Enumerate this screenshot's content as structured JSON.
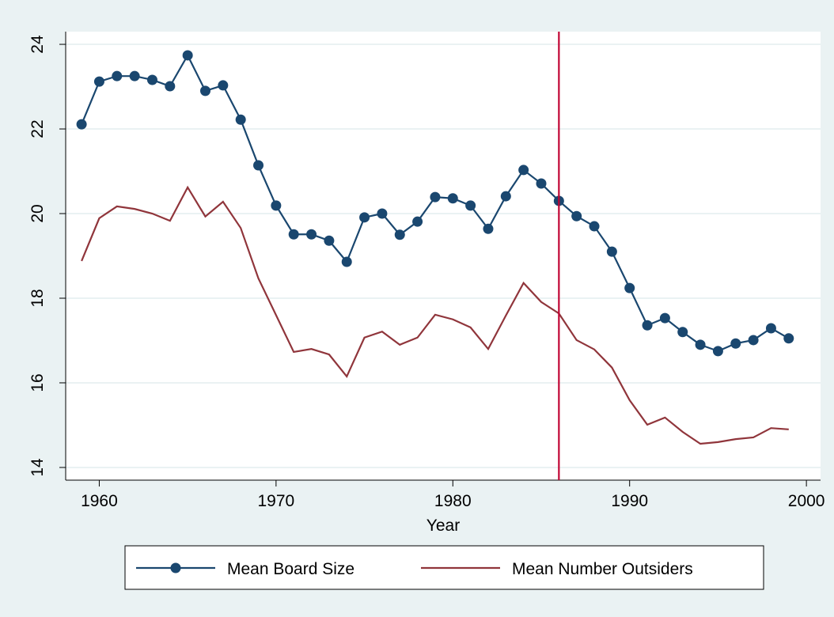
{
  "chart_data": {
    "type": "line",
    "x_label": "Year",
    "x": [
      1959,
      1960,
      1961,
      1962,
      1963,
      1964,
      1965,
      1966,
      1967,
      1968,
      1969,
      1970,
      1971,
      1972,
      1973,
      1974,
      1975,
      1976,
      1977,
      1978,
      1979,
      1980,
      1981,
      1982,
      1983,
      1984,
      1985,
      1986,
      1987,
      1988,
      1989,
      1990,
      1991,
      1992,
      1993,
      1994,
      1995,
      1996,
      1997,
      1998,
      1999
    ],
    "series": [
      {
        "name": "Mean Board Size",
        "color": "#1a476f",
        "marker": "circle",
        "values": [
          22.11,
          23.12,
          23.25,
          23.25,
          23.16,
          23.01,
          23.74,
          22.9,
          23.03,
          22.22,
          21.14,
          20.19,
          19.51,
          19.51,
          19.36,
          18.86,
          19.91,
          20.0,
          19.5,
          19.81,
          20.39,
          20.36,
          20.19,
          19.64,
          20.41,
          21.03,
          20.71,
          20.3,
          19.94,
          19.7,
          19.1,
          18.24,
          17.36,
          17.53,
          17.2,
          16.9,
          16.75,
          16.93,
          17.01,
          17.29,
          17.05
        ]
      },
      {
        "name": "Mean Number Outsiders",
        "color": "#90353b",
        "marker": "none",
        "values": [
          18.88,
          19.89,
          20.17,
          20.11,
          20.0,
          19.83,
          20.62,
          19.93,
          20.28,
          19.66,
          18.47,
          17.6,
          16.73,
          16.8,
          16.67,
          16.15,
          17.07,
          17.21,
          16.9,
          17.07,
          17.61,
          17.5,
          17.31,
          16.8,
          17.59,
          18.36,
          17.91,
          17.64,
          17.01,
          16.79,
          16.36,
          15.59,
          15.01,
          15.18,
          14.84,
          14.56,
          14.6,
          14.67,
          14.71,
          14.93,
          14.9
        ]
      }
    ],
    "xlim": [
      1958.1,
      2000.8
    ],
    "ylim": [
      13.7,
      24.3
    ],
    "xticks": [
      1960,
      1970,
      1980,
      1990,
      2000
    ],
    "yticks": [
      14,
      16,
      18,
      20,
      22,
      24
    ],
    "reference_line": {
      "x": 1986,
      "color": "#c10534"
    },
    "grid": true
  }
}
